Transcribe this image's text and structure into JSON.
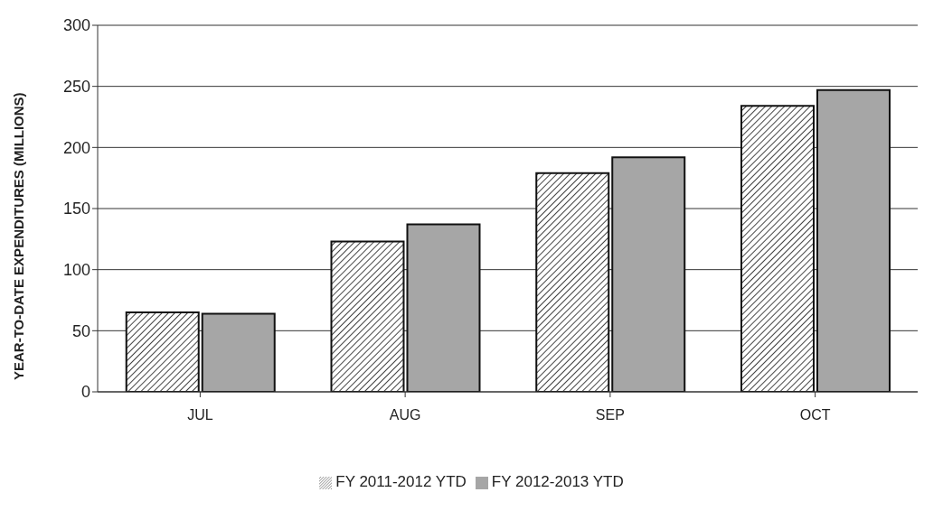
{
  "chart_data": {
    "type": "bar",
    "categories": [
      "JUL",
      "AUG",
      "SEP",
      "OCT"
    ],
    "ylabel": "YEAR-TO-DATE EXPENDITURES (MILLIONS)",
    "series": [
      {
        "name": "FY 2011-2012 YTD",
        "color": "#111111",
        "values": [
          65,
          123,
          179,
          234
        ]
      },
      {
        "name": "FY 2012-2013 YTD",
        "color": "#a6a6a6",
        "values": [
          64,
          137,
          192,
          247
        ]
      }
    ],
    "ylim": [
      0,
      300
    ],
    "yticks": [
      0,
      50,
      100,
      150,
      200,
      250,
      300
    ],
    "grid": "y",
    "legend": "bottom"
  }
}
